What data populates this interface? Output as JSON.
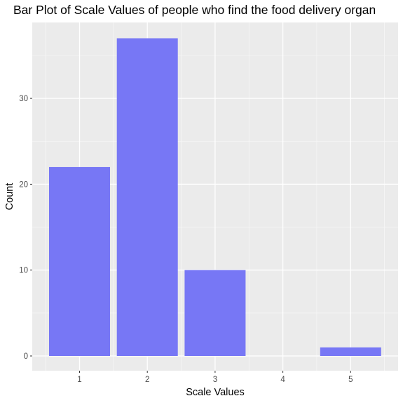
{
  "chart_data": {
    "type": "bar",
    "title": "Bar Plot of Scale Values of people who find the food delivery organ",
    "xlabel": "Scale Values",
    "ylabel": "Count",
    "categories": [
      "1",
      "2",
      "3",
      "4",
      "5"
    ],
    "values": [
      22,
      37,
      10,
      0,
      1
    ],
    "x_ticks": [
      "1",
      "2",
      "3",
      "4",
      "5"
    ],
    "y_ticks": [
      "0",
      "10",
      "20",
      "30"
    ],
    "ylim": [
      0,
      39
    ],
    "grid": true,
    "legend": "none",
    "colors": {
      "bar": "#7777F5",
      "panel": "#EBEBEB",
      "grid": "#FFFFFF",
      "background": "#FFFFFF"
    }
  }
}
